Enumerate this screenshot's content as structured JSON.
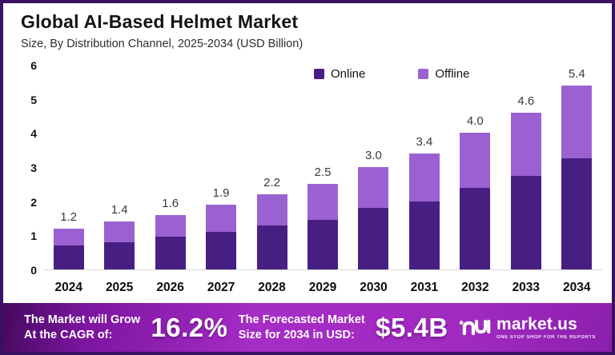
{
  "header": {
    "title": "Global AI-Based Helmet Market",
    "subtitle": "Size, By Distribution Channel, 2025-2034 (USD Billion)"
  },
  "legend": {
    "items": [
      {
        "label": "Online",
        "color": "#471f82"
      },
      {
        "label": "Offline",
        "color": "#9b61d2"
      }
    ]
  },
  "chart_data": {
    "type": "bar",
    "stacked": true,
    "title": "Global AI-Based Helmet Market",
    "subtitle": "Size, By Distribution Channel, 2025-2034 (USD Billion)",
    "categories": [
      "2024",
      "2025",
      "2026",
      "2027",
      "2028",
      "2029",
      "2030",
      "2031",
      "2032",
      "2033",
      "2034"
    ],
    "series": [
      {
        "name": "Online",
        "color": "#471f82",
        "values": [
          0.7,
          0.8,
          0.95,
          1.1,
          1.3,
          1.45,
          1.8,
          2.0,
          2.4,
          2.75,
          3.25
        ]
      },
      {
        "name": "Offline",
        "color": "#9b61d2",
        "values": [
          0.5,
          0.6,
          0.65,
          0.8,
          0.9,
          1.05,
          1.2,
          1.4,
          1.6,
          1.85,
          2.15
        ]
      }
    ],
    "totals_labels": [
      "1.2",
      "1.4",
      "1.6",
      "1.9",
      "2.2",
      "2.5",
      "3.0",
      "3.4",
      "4.0",
      "4.6",
      "5.4"
    ],
    "xlabel": "",
    "ylabel": "",
    "ylim": [
      0,
      6
    ],
    "yticks": [
      0,
      1,
      2,
      3,
      4,
      5,
      6
    ],
    "grid": false,
    "legend_position": "top-center",
    "units": "USD Billion"
  },
  "banner": {
    "cagr_label_line1": "The Market will Grow",
    "cagr_label_line2": "At the CAGR of:",
    "cagr_value": "16.2%",
    "forecast_label_line1": "The Forecasted Market",
    "forecast_label_line2": "Size for 2034 in USD:",
    "forecast_value": "$5.4B",
    "logo_text": "market.us",
    "logo_tagline": "ONE STOP SHOP FOR THE REPORTS"
  },
  "colors": {
    "online": "#471f82",
    "offline": "#9b61d2",
    "frame_border": "#3a1060",
    "banner_gradient_start": "#45095e",
    "banner_gradient_mid": "#a62cc6",
    "banner_gradient_end": "#8c1fae",
    "axis_line": "#d8d8d8",
    "text_dark": "#141414"
  }
}
